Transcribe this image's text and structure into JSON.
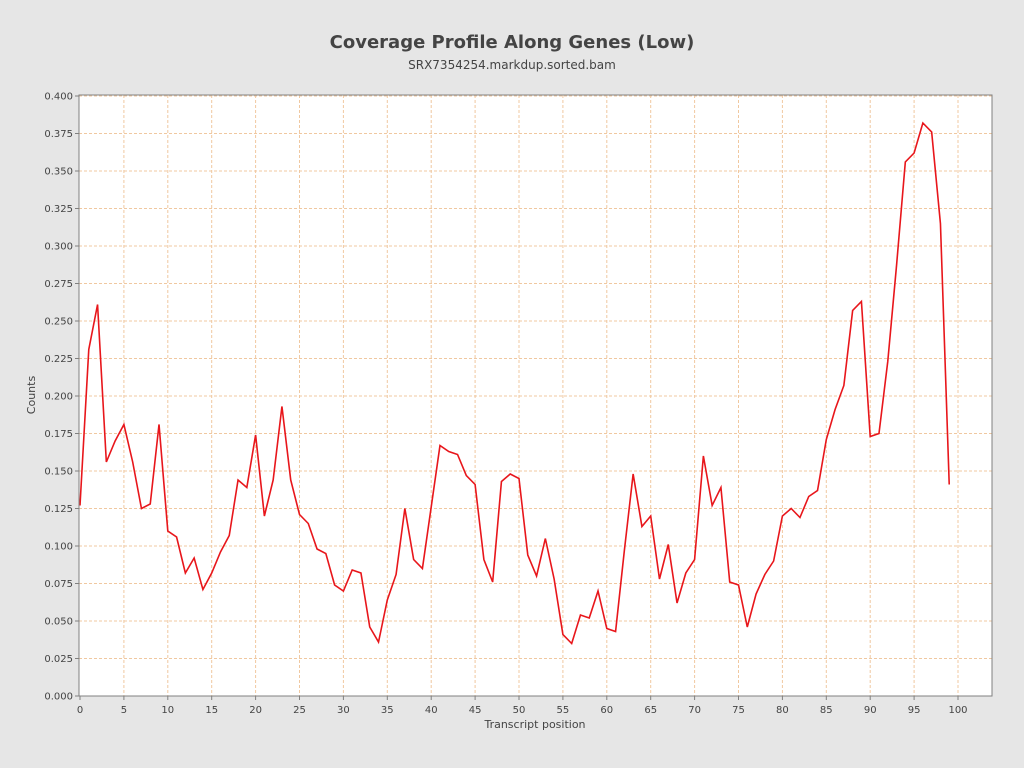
{
  "chart_data": {
    "type": "line",
    "title": "Coverage Profile Along Genes (Low)",
    "subtitle": "SRX7354254.markdup.sorted.bam",
    "xlabel": "Transcript position",
    "ylabel": "Counts",
    "xlim": [
      0,
      100
    ],
    "ylim": [
      0,
      0.4
    ],
    "x_ticks": [
      "0",
      "5",
      "10",
      "15",
      "20",
      "25",
      "30",
      "35",
      "40",
      "45",
      "50",
      "55",
      "60",
      "65",
      "70",
      "75",
      "80",
      "85",
      "90",
      "95",
      "100"
    ],
    "y_ticks": [
      "0.000",
      "0.025",
      "0.050",
      "0.075",
      "0.100",
      "0.125",
      "0.150",
      "0.175",
      "0.200",
      "0.225",
      "0.250",
      "0.275",
      "0.300",
      "0.325",
      "0.350",
      "0.375",
      "0.400"
    ],
    "grid": true,
    "colors": {
      "line": "#e8161b",
      "grid": "#f0c8a0",
      "plot_background": "#ffffff",
      "page_background": "#e6e6e6"
    },
    "series": [
      {
        "x": [
          0,
          1,
          2,
          3,
          4,
          5,
          6,
          7,
          8,
          9,
          10,
          11,
          12,
          13,
          14,
          15,
          16,
          17,
          18,
          19,
          20,
          21,
          22,
          23,
          24,
          25,
          26,
          27,
          28,
          29,
          30,
          31,
          32,
          33,
          34,
          35,
          36,
          37,
          38,
          39,
          40,
          41,
          42,
          43,
          44,
          45,
          46,
          47,
          48,
          49,
          50,
          51,
          52,
          53,
          54,
          55,
          56,
          57,
          58,
          59,
          60,
          61,
          62,
          63,
          64,
          65,
          66,
          67,
          68,
          69,
          70,
          71,
          72,
          73,
          74,
          75,
          76,
          77,
          78,
          79,
          80,
          81,
          82,
          83,
          84,
          85,
          86,
          87,
          88,
          89,
          90,
          91,
          92,
          93,
          94,
          95,
          96,
          97,
          98,
          99
        ],
        "values": [
          0.127,
          0.231,
          0.261,
          0.156,
          0.17,
          0.181,
          0.156,
          0.125,
          0.128,
          0.181,
          0.11,
          0.106,
          0.082,
          0.092,
          0.071,
          0.082,
          0.096,
          0.107,
          0.144,
          0.139,
          0.174,
          0.12,
          0.144,
          0.193,
          0.144,
          0.121,
          0.115,
          0.098,
          0.095,
          0.074,
          0.07,
          0.084,
          0.082,
          0.046,
          0.036,
          0.064,
          0.081,
          0.125,
          0.091,
          0.085,
          0.126,
          0.167,
          0.163,
          0.161,
          0.147,
          0.141,
          0.091,
          0.076,
          0.143,
          0.148,
          0.145,
          0.094,
          0.08,
          0.105,
          0.078,
          0.041,
          0.035,
          0.054,
          0.052,
          0.07,
          0.045,
          0.043,
          0.097,
          0.148,
          0.113,
          0.12,
          0.078,
          0.101,
          0.062,
          0.082,
          0.091,
          0.16,
          0.127,
          0.139,
          0.076,
          0.074,
          0.046,
          0.068,
          0.081,
          0.09,
          0.12,
          0.125,
          0.119,
          0.133,
          0.137,
          0.171,
          0.191,
          0.207,
          0.257,
          0.263,
          0.173,
          0.175,
          0.223,
          0.287,
          0.356,
          0.362,
          0.382,
          0.376,
          0.315,
          0.141
        ]
      }
    ]
  }
}
